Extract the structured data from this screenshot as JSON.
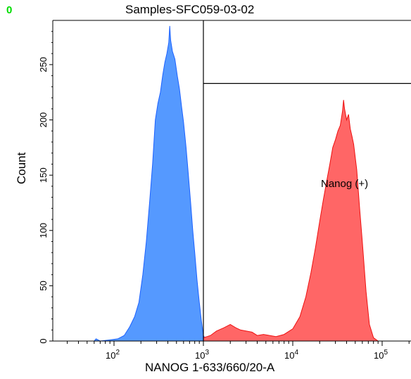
{
  "corner_label": "0",
  "chart_data": {
    "type": "histogram",
    "title": "Samples-SFC059-03-02",
    "xlabel": "NANOG 1-633/660/20-A",
    "ylabel": "Count",
    "x_scale": "log",
    "xlim": [
      30,
      200000
    ],
    "ylim": [
      0,
      290
    ],
    "x_ticks": [
      {
        "value": 100,
        "base": "10",
        "exp": "2"
      },
      {
        "value": 1000,
        "base": "10",
        "exp": "3"
      },
      {
        "value": 10000,
        "base": "10",
        "exp": "4"
      },
      {
        "value": 100000,
        "base": "10",
        "exp": "5"
      }
    ],
    "y_ticks": [
      0,
      50,
      100,
      150,
      200,
      250
    ],
    "gate": {
      "label": "Nanog (+)",
      "x_min": 1000,
      "x_max": 200000,
      "y": 233
    },
    "series": [
      {
        "color": "#5599ff",
        "edge_color": "#1d62ff",
        "points": [
          [
            60,
            0
          ],
          [
            63,
            2
          ],
          [
            70,
            0
          ],
          [
            90,
            1
          ],
          [
            110,
            2
          ],
          [
            130,
            5
          ],
          [
            150,
            13
          ],
          [
            170,
            22
          ],
          [
            190,
            35
          ],
          [
            210,
            60
          ],
          [
            230,
            90
          ],
          [
            250,
            125
          ],
          [
            270,
            160
          ],
          [
            290,
            200
          ],
          [
            310,
            215
          ],
          [
            330,
            225
          ],
          [
            350,
            240
          ],
          [
            370,
            252
          ],
          [
            390,
            260
          ],
          [
            410,
            270
          ],
          [
            420,
            285
          ],
          [
            430,
            272
          ],
          [
            450,
            262
          ],
          [
            480,
            255
          ],
          [
            510,
            240
          ],
          [
            540,
            228
          ],
          [
            570,
            212
          ],
          [
            600,
            198
          ],
          [
            640,
            175
          ],
          [
            680,
            150
          ],
          [
            720,
            125
          ],
          [
            760,
            100
          ],
          [
            800,
            80
          ],
          [
            850,
            55
          ],
          [
            900,
            35
          ],
          [
            950,
            18
          ],
          [
            1000,
            5
          ],
          [
            1050,
            2
          ],
          [
            1100,
            0
          ]
        ]
      },
      {
        "color": "#ff6666",
        "edge_color": "#ee1111",
        "points": [
          [
            1000,
            3
          ],
          [
            1100,
            4
          ],
          [
            1200,
            5
          ],
          [
            1400,
            9
          ],
          [
            1700,
            12
          ],
          [
            2000,
            15
          ],
          [
            2300,
            12
          ],
          [
            2600,
            10
          ],
          [
            3000,
            9
          ],
          [
            3500,
            8
          ],
          [
            4000,
            5
          ],
          [
            4700,
            6
          ],
          [
            5500,
            5
          ],
          [
            6500,
            4
          ],
          [
            8000,
            6
          ],
          [
            10000,
            11
          ],
          [
            12000,
            22
          ],
          [
            14000,
            40
          ],
          [
            16000,
            62
          ],
          [
            18000,
            85
          ],
          [
            20000,
            108
          ],
          [
            22000,
            128
          ],
          [
            24000,
            145
          ],
          [
            26000,
            160
          ],
          [
            28000,
            175
          ],
          [
            30000,
            182
          ],
          [
            32000,
            190
          ],
          [
            34000,
            195
          ],
          [
            36000,
            208
          ],
          [
            37000,
            218
          ],
          [
            38000,
            210
          ],
          [
            40000,
            200
          ],
          [
            42000,
            205
          ],
          [
            44000,
            192
          ],
          [
            46000,
            185
          ],
          [
            48000,
            178
          ],
          [
            52000,
            155
          ],
          [
            56000,
            120
          ],
          [
            60000,
            90
          ],
          [
            66000,
            45
          ],
          [
            72000,
            15
          ],
          [
            80000,
            3
          ],
          [
            90000,
            0
          ]
        ]
      }
    ]
  }
}
